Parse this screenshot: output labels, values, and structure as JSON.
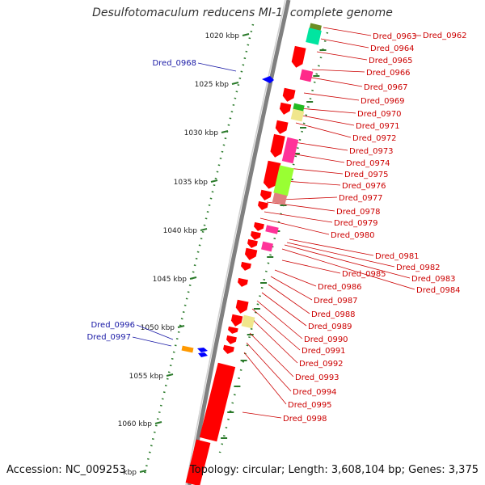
{
  "title": "Desulfotomaculum reducens MI-1, complete genome",
  "footer": {
    "accession": "Accession: NC_009253",
    "topology": "Topology: circular; Length: 3,608,104 bp; Genes: 3,375"
  },
  "colors": {
    "backbone": "#808080",
    "tick": "#2a7a2a",
    "gene_red": "#ff0000",
    "label_red": "#cc0000",
    "label_blue": "#1a1aa6",
    "gene_blue": "#0000ff",
    "leader": "#cc0000"
  },
  "ticks": [
    {
      "label": "1020 kbp"
    },
    {
      "label": "1025 kbp"
    },
    {
      "label": "1030 kbp"
    },
    {
      "label": "1035 kbp"
    },
    {
      "label": "1040 kbp"
    },
    {
      "label": "1045 kbp"
    },
    {
      "label": "1050 kbp"
    },
    {
      "label": "1055 kbp"
    },
    {
      "label": "1060 kbp"
    },
    {
      "label": "kbp"
    }
  ],
  "right_labels": [
    "Dred_0962",
    "Dred_0963",
    "Dred_0964",
    "Dred_0965",
    "Dred_0966",
    "Dred_0967",
    "Dred_0969",
    "Dred_0970",
    "Dred_0971",
    "Dred_0972",
    "Dred_0973",
    "Dred_0974",
    "Dred_0975",
    "Dred_0976",
    "Dred_0977",
    "Dred_0978",
    "Dred_0979",
    "Dred_0980",
    "Dred_0981",
    "Dred_0982",
    "Dred_0983",
    "Dred_0984",
    "Dred_0985",
    "Dred_0986",
    "Dred_0987",
    "Dred_0988",
    "Dred_0989",
    "Dred_0990",
    "Dred_0991",
    "Dred_0992",
    "Dred_0993",
    "Dred_0994",
    "Dred_0995",
    "Dred_0998"
  ],
  "left_labels": [
    "Dred_0968",
    "Dred_0996",
    "Dred_0997"
  ]
}
